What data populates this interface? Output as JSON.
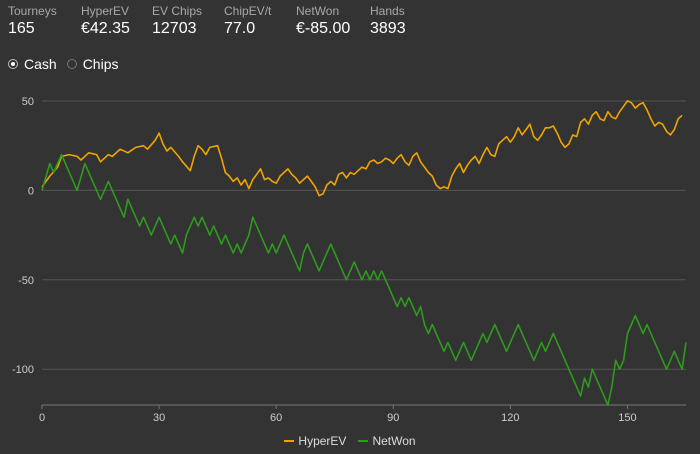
{
  "stats": [
    {
      "label": "Tourneys",
      "value": "165"
    },
    {
      "label": "HyperEV",
      "value": "€42.35"
    },
    {
      "label": "EV Chips",
      "value": "12703"
    },
    {
      "label": "ChipEV/t",
      "value": "77.0"
    },
    {
      "label": "NetWon",
      "value": "€-85.00"
    },
    {
      "label": "Hands",
      "value": "3893"
    }
  ],
  "mode": {
    "selected": "cash",
    "cash_label": "Cash",
    "chips_label": "Chips"
  },
  "colors": {
    "background": "#333333",
    "grid": "#555555",
    "hyperev": "#f0a400",
    "netwon": "#2e9a1e"
  },
  "chart_data": {
    "type": "line",
    "title": "",
    "xlabel": "",
    "ylabel": "",
    "xlim": [
      0,
      165
    ],
    "ylim": [
      -120,
      55
    ],
    "x_ticks": [
      0,
      30,
      60,
      90,
      120,
      150
    ],
    "y_ticks": [
      50,
      0,
      -50,
      -100
    ],
    "grid": "horizontal",
    "legend": "bottom-center",
    "series": [
      {
        "name": "HyperEV",
        "color": "#f0a400",
        "points": [
          [
            0,
            2
          ],
          [
            2,
            8
          ],
          [
            4,
            13
          ],
          [
            5,
            19
          ],
          [
            7,
            20
          ],
          [
            9,
            19
          ],
          [
            10,
            17
          ],
          [
            12,
            21
          ],
          [
            14,
            20
          ],
          [
            15,
            16
          ],
          [
            17,
            20
          ],
          [
            18,
            19
          ],
          [
            20,
            23
          ],
          [
            22,
            21
          ],
          [
            24,
            24
          ],
          [
            26,
            25
          ],
          [
            27,
            23
          ],
          [
            29,
            28
          ],
          [
            30,
            32
          ],
          [
            31,
            26
          ],
          [
            32,
            22
          ],
          [
            33,
            24
          ],
          [
            35,
            19
          ],
          [
            36,
            16
          ],
          [
            38,
            11
          ],
          [
            39,
            19
          ],
          [
            40,
            25
          ],
          [
            41,
            23
          ],
          [
            42,
            20
          ],
          [
            43,
            24
          ],
          [
            45,
            25
          ],
          [
            46,
            18
          ],
          [
            47,
            10
          ],
          [
            48,
            8
          ],
          [
            49,
            5
          ],
          [
            50,
            7
          ],
          [
            51,
            3
          ],
          [
            52,
            6
          ],
          [
            53,
            1
          ],
          [
            54,
            6
          ],
          [
            55,
            9
          ],
          [
            56,
            12
          ],
          [
            57,
            6
          ],
          [
            58,
            7
          ],
          [
            59,
            5
          ],
          [
            60,
            4
          ],
          [
            61,
            8
          ],
          [
            62,
            10
          ],
          [
            63,
            12
          ],
          [
            64,
            9
          ],
          [
            65,
            7
          ],
          [
            66,
            4
          ],
          [
            67,
            6
          ],
          [
            68,
            8
          ],
          [
            69,
            5
          ],
          [
            70,
            2
          ],
          [
            71,
            -3
          ],
          [
            72,
            -2
          ],
          [
            73,
            3
          ],
          [
            74,
            5
          ],
          [
            75,
            3
          ],
          [
            76,
            9
          ],
          [
            77,
            10
          ],
          [
            78,
            7
          ],
          [
            79,
            10
          ],
          [
            80,
            9
          ],
          [
            81,
            11
          ],
          [
            82,
            13
          ],
          [
            83,
            12
          ],
          [
            84,
            16
          ],
          [
            85,
            17
          ],
          [
            86,
            15
          ],
          [
            87,
            16
          ],
          [
            88,
            18
          ],
          [
            89,
            17
          ],
          [
            90,
            15
          ],
          [
            91,
            18
          ],
          [
            92,
            20
          ],
          [
            93,
            16
          ],
          [
            94,
            14
          ],
          [
            95,
            19
          ],
          [
            96,
            21
          ],
          [
            97,
            16
          ],
          [
            98,
            13
          ],
          [
            99,
            10
          ],
          [
            100,
            8
          ],
          [
            101,
            3
          ],
          [
            102,
            1
          ],
          [
            103,
            2
          ],
          [
            104,
            1
          ],
          [
            105,
            8
          ],
          [
            106,
            12
          ],
          [
            107,
            15
          ],
          [
            108,
            10
          ],
          [
            109,
            14
          ],
          [
            110,
            17
          ],
          [
            111,
            19
          ],
          [
            112,
            15
          ],
          [
            113,
            20
          ],
          [
            114,
            24
          ],
          [
            115,
            20
          ],
          [
            116,
            19
          ],
          [
            117,
            26
          ],
          [
            118,
            28
          ],
          [
            119,
            30
          ],
          [
            120,
            27
          ],
          [
            121,
            30
          ],
          [
            122,
            35
          ],
          [
            123,
            31
          ],
          [
            124,
            34
          ],
          [
            125,
            37
          ],
          [
            126,
            30
          ],
          [
            127,
            28
          ],
          [
            128,
            31
          ],
          [
            129,
            35
          ],
          [
            130,
            35
          ],
          [
            131,
            36
          ],
          [
            132,
            32
          ],
          [
            133,
            27
          ],
          [
            134,
            24
          ],
          [
            135,
            26
          ],
          [
            136,
            31
          ],
          [
            137,
            30
          ],
          [
            138,
            38
          ],
          [
            139,
            40
          ],
          [
            140,
            37
          ],
          [
            141,
            42
          ],
          [
            142,
            44
          ],
          [
            143,
            40
          ],
          [
            144,
            39
          ],
          [
            145,
            44
          ],
          [
            146,
            41
          ],
          [
            147,
            40
          ],
          [
            148,
            44
          ],
          [
            149,
            47
          ],
          [
            150,
            50
          ],
          [
            151,
            49
          ],
          [
            152,
            46
          ],
          [
            153,
            48
          ],
          [
            154,
            49
          ],
          [
            155,
            45
          ],
          [
            156,
            40
          ],
          [
            157,
            36
          ],
          [
            158,
            38
          ],
          [
            159,
            37
          ],
          [
            160,
            33
          ],
          [
            161,
            31
          ],
          [
            162,
            34
          ],
          [
            163,
            40
          ],
          [
            164,
            42
          ]
        ]
      },
      {
        "name": "NetWon",
        "color": "#2e9a1e",
        "points": [
          [
            0,
            0
          ],
          [
            2,
            15
          ],
          [
            3,
            10
          ],
          [
            5,
            20
          ],
          [
            6,
            15
          ],
          [
            8,
            5
          ],
          [
            9,
            0
          ],
          [
            11,
            15
          ],
          [
            12,
            10
          ],
          [
            14,
            0
          ],
          [
            15,
            -5
          ],
          [
            16,
            0
          ],
          [
            17,
            5
          ],
          [
            18,
            0
          ],
          [
            20,
            -10
          ],
          [
            21,
            -15
          ],
          [
            22,
            -5
          ],
          [
            23,
            -10
          ],
          [
            24,
            -15
          ],
          [
            25,
            -20
          ],
          [
            26,
            -15
          ],
          [
            27,
            -20
          ],
          [
            28,
            -25
          ],
          [
            29,
            -20
          ],
          [
            30,
            -15
          ],
          [
            31,
            -20
          ],
          [
            32,
            -25
          ],
          [
            33,
            -30
          ],
          [
            34,
            -25
          ],
          [
            35,
            -30
          ],
          [
            36,
            -35
          ],
          [
            37,
            -25
          ],
          [
            38,
            -20
          ],
          [
            39,
            -15
          ],
          [
            40,
            -20
          ],
          [
            41,
            -15
          ],
          [
            42,
            -20
          ],
          [
            43,
            -25
          ],
          [
            44,
            -20
          ],
          [
            45,
            -25
          ],
          [
            46,
            -30
          ],
          [
            47,
            -25
          ],
          [
            48,
            -30
          ],
          [
            49,
            -35
          ],
          [
            50,
            -30
          ],
          [
            51,
            -35
          ],
          [
            52,
            -30
          ],
          [
            53,
            -25
          ],
          [
            54,
            -15
          ],
          [
            55,
            -20
          ],
          [
            56,
            -25
          ],
          [
            57,
            -30
          ],
          [
            58,
            -35
          ],
          [
            59,
            -30
          ],
          [
            60,
            -35
          ],
          [
            61,
            -30
          ],
          [
            62,
            -25
          ],
          [
            63,
            -30
          ],
          [
            64,
            -35
          ],
          [
            65,
            -40
          ],
          [
            66,
            -45
          ],
          [
            67,
            -35
          ],
          [
            68,
            -30
          ],
          [
            69,
            -35
          ],
          [
            70,
            -40
          ],
          [
            71,
            -45
          ],
          [
            72,
            -40
          ],
          [
            73,
            -35
          ],
          [
            74,
            -30
          ],
          [
            75,
            -35
          ],
          [
            76,
            -40
          ],
          [
            77,
            -45
          ],
          [
            78,
            -50
          ],
          [
            79,
            -45
          ],
          [
            80,
            -40
          ],
          [
            81,
            -45
          ],
          [
            82,
            -50
          ],
          [
            83,
            -45
          ],
          [
            84,
            -50
          ],
          [
            85,
            -45
          ],
          [
            86,
            -50
          ],
          [
            87,
            -45
          ],
          [
            88,
            -50
          ],
          [
            89,
            -55
          ],
          [
            90,
            -60
          ],
          [
            91,
            -65
          ],
          [
            92,
            -60
          ],
          [
            93,
            -65
          ],
          [
            94,
            -60
          ],
          [
            95,
            -65
          ],
          [
            96,
            -70
          ],
          [
            97,
            -65
          ],
          [
            98,
            -75
          ],
          [
            99,
            -80
          ],
          [
            100,
            -75
          ],
          [
            101,
            -80
          ],
          [
            102,
            -85
          ],
          [
            103,
            -90
          ],
          [
            104,
            -85
          ],
          [
            105,
            -90
          ],
          [
            106,
            -95
          ],
          [
            107,
            -90
          ],
          [
            108,
            -85
          ],
          [
            109,
            -90
          ],
          [
            110,
            -95
          ],
          [
            111,
            -90
          ],
          [
            112,
            -85
          ],
          [
            113,
            -80
          ],
          [
            114,
            -85
          ],
          [
            115,
            -80
          ],
          [
            116,
            -75
          ],
          [
            117,
            -80
          ],
          [
            118,
            -85
          ],
          [
            119,
            -90
          ],
          [
            120,
            -85
          ],
          [
            121,
            -80
          ],
          [
            122,
            -75
          ],
          [
            123,
            -80
          ],
          [
            124,
            -85
          ],
          [
            125,
            -90
          ],
          [
            126,
            -95
          ],
          [
            127,
            -90
          ],
          [
            128,
            -85
          ],
          [
            129,
            -90
          ],
          [
            130,
            -85
          ],
          [
            131,
            -80
          ],
          [
            132,
            -85
          ],
          [
            133,
            -90
          ],
          [
            134,
            -95
          ],
          [
            135,
            -100
          ],
          [
            136,
            -105
          ],
          [
            137,
            -110
          ],
          [
            138,
            -115
          ],
          [
            139,
            -105
          ],
          [
            140,
            -110
          ],
          [
            141,
            -100
          ],
          [
            142,
            -105
          ],
          [
            143,
            -110
          ],
          [
            144,
            -115
          ],
          [
            145,
            -120
          ],
          [
            146,
            -110
          ],
          [
            147,
            -95
          ],
          [
            148,
            -100
          ],
          [
            149,
            -95
          ],
          [
            150,
            -80
          ],
          [
            151,
            -75
          ],
          [
            152,
            -70
          ],
          [
            153,
            -75
          ],
          [
            154,
            -80
          ],
          [
            155,
            -75
          ],
          [
            156,
            -80
          ],
          [
            157,
            -85
          ],
          [
            158,
            -90
          ],
          [
            159,
            -95
          ],
          [
            160,
            -100
          ],
          [
            161,
            -95
          ],
          [
            162,
            -90
          ],
          [
            163,
            -95
          ],
          [
            164,
            -100
          ],
          [
            165,
            -85
          ]
        ]
      }
    ]
  }
}
